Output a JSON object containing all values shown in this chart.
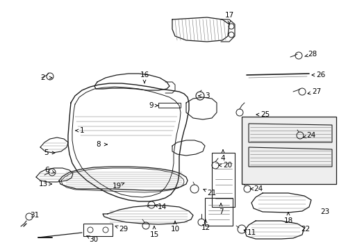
{
  "bg_color": "#ffffff",
  "fig_width": 4.89,
  "fig_height": 3.6,
  "dpi": 100,
  "label_arrow_color": "#000000",
  "line_color": "#1a1a1a",
  "light_gray": "#777777",
  "labels": [
    [
      "1",
      118,
      188,
      108,
      188
    ],
    [
      "2",
      62,
      112,
      76,
      112
    ],
    [
      "3",
      298,
      138,
      285,
      138
    ],
    [
      "4",
      321,
      228,
      321,
      215
    ],
    [
      "5",
      66,
      220,
      80,
      220
    ],
    [
      "6",
      68,
      245,
      82,
      250
    ],
    [
      "7",
      318,
      305,
      318,
      292
    ],
    [
      "8",
      142,
      208,
      155,
      208
    ],
    [
      "9",
      218,
      152,
      228,
      152
    ],
    [
      "10",
      252,
      330,
      252,
      318
    ],
    [
      "11",
      362,
      335,
      348,
      330
    ],
    [
      "12",
      296,
      328,
      296,
      316
    ],
    [
      "13",
      62,
      265,
      78,
      265
    ],
    [
      "14",
      233,
      298,
      222,
      295
    ],
    [
      "15",
      222,
      338,
      222,
      325
    ],
    [
      "16",
      208,
      108,
      208,
      120
    ],
    [
      "17",
      330,
      22,
      330,
      35
    ],
    [
      "18",
      415,
      318,
      415,
      305
    ],
    [
      "19",
      168,
      268,
      182,
      262
    ],
    [
      "20",
      328,
      238,
      314,
      238
    ],
    [
      "21",
      305,
      278,
      292,
      272
    ],
    [
      "22",
      440,
      330,
      440,
      330
    ],
    [
      "23",
      468,
      305,
      468,
      305
    ],
    [
      "24",
      372,
      272,
      360,
      272
    ],
    [
      "24",
      448,
      195,
      436,
      198
    ],
    [
      "25",
      382,
      165,
      368,
      165
    ],
    [
      "26",
      462,
      108,
      448,
      108
    ],
    [
      "27",
      456,
      132,
      442,
      135
    ],
    [
      "28",
      450,
      78,
      436,
      82
    ],
    [
      "29",
      178,
      330,
      165,
      325
    ],
    [
      "30",
      135,
      345,
      122,
      338
    ],
    [
      "31",
      50,
      310,
      50,
      310
    ]
  ]
}
